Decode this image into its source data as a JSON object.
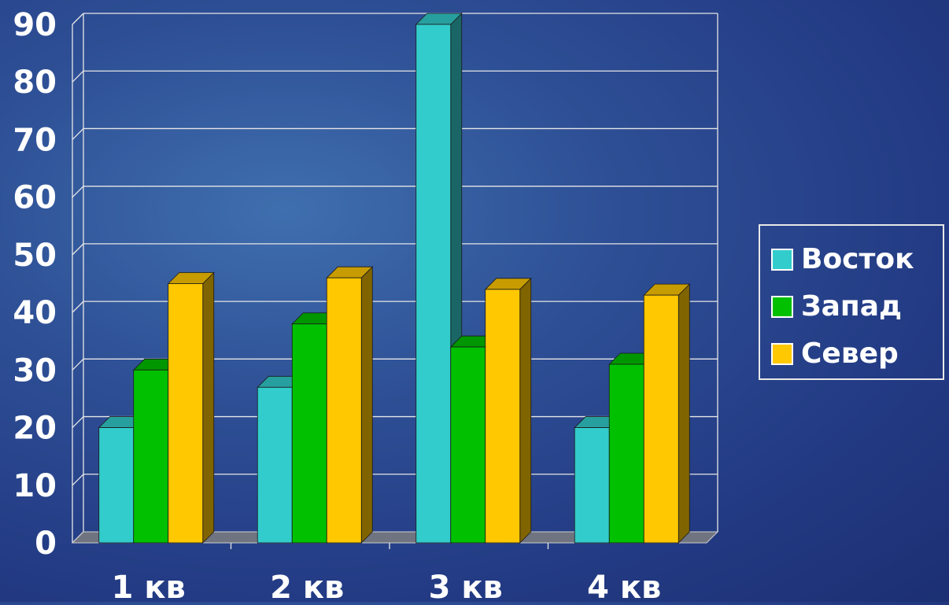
{
  "chart_data": {
    "type": "bar",
    "categories": [
      "1 кв",
      "2 кв",
      "3 кв",
      "4 кв"
    ],
    "series": [
      {
        "name": "Восток",
        "color": "#33cccc",
        "values": [
          20,
          27,
          90,
          20
        ]
      },
      {
        "name": "Запад",
        "color": "#00c000",
        "values": [
          30,
          38,
          34,
          31
        ]
      },
      {
        "name": "Север",
        "color": "#ffc800",
        "values": [
          45,
          46,
          44,
          43
        ]
      }
    ],
    "yticks": [
      0,
      10,
      20,
      30,
      40,
      50,
      60,
      70,
      80,
      90
    ],
    "ylim": [
      0,
      90
    ],
    "grid": true,
    "legend_position": "right",
    "style": "3d-column"
  }
}
